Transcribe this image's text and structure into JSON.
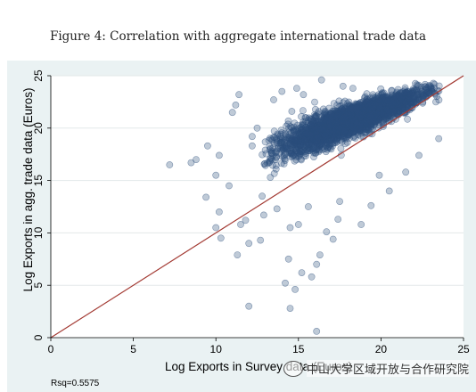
{
  "caption": "Figure 4: Correlation with aggregate international trade data",
  "chart_data": {
    "type": "scatter",
    "xlabel": "Log Exports in Survey data (Euros)",
    "ylabel": "Log Exports in agg. trade data (Euros)",
    "xlim": [
      0,
      25
    ],
    "ylim": [
      0,
      25
    ],
    "xticks": [
      0,
      5,
      10,
      15,
      20,
      25
    ],
    "yticks": [
      0,
      5,
      10,
      15,
      20,
      25
    ],
    "grid": true,
    "annotation": "Rsq=0.5575",
    "fit_line": {
      "x": [
        0,
        25
      ],
      "y": [
        0,
        25
      ],
      "color": "#a33a33"
    },
    "point_color": "#2c4f7c",
    "outlier_points": [
      [
        7.2,
        16.5
      ],
      [
        8.5,
        16.7
      ],
      [
        8.8,
        17.0
      ],
      [
        9.5,
        18.3
      ],
      [
        10.2,
        17.4
      ],
      [
        10.2,
        12.0
      ],
      [
        10.0,
        10.5
      ],
      [
        10.3,
        9.5
      ],
      [
        10.8,
        14.5
      ],
      [
        11.2,
        22.2
      ],
      [
        11.4,
        23.2
      ],
      [
        11.8,
        11.2
      ],
      [
        11.3,
        7.9
      ],
      [
        11.5,
        10.8
      ],
      [
        12.2,
        18.3
      ],
      [
        12.8,
        13.5
      ],
      [
        12.2,
        19.2
      ],
      [
        12.5,
        20.0
      ],
      [
        14.2,
        5.2
      ],
      [
        14.8,
        4.6
      ],
      [
        14.4,
        7.5
      ],
      [
        14.5,
        10.5
      ],
      [
        14.6,
        21.6
      ],
      [
        15.0,
        10.8
      ],
      [
        15.2,
        6.2
      ],
      [
        14.5,
        2.8
      ],
      [
        15.8,
        5.8
      ],
      [
        16.1,
        7.0
      ],
      [
        16.1,
        0.6
      ],
      [
        16.3,
        7.9
      ],
      [
        16.7,
        10.1
      ],
      [
        17.1,
        9.4
      ],
      [
        17.4,
        11.3
      ],
      [
        15.3,
        23.2
      ],
      [
        14.9,
        23.8
      ],
      [
        16.4,
        24.6
      ],
      [
        17.7,
        24.0
      ],
      [
        18.3,
        23.8
      ],
      [
        18.8,
        10.8
      ],
      [
        19.4,
        12.6
      ],
      [
        19.9,
        15.5
      ],
      [
        13.3,
        15.3
      ],
      [
        13.7,
        12.3
      ],
      [
        13.9,
        18.6
      ],
      [
        12.9,
        11.7
      ],
      [
        13.6,
        17.0
      ],
      [
        12.0,
        9.0
      ],
      [
        12.7,
        9.3
      ],
      [
        9.4,
        13.4
      ],
      [
        12.0,
        3.0
      ],
      [
        13.5,
        22.7
      ],
      [
        14.0,
        23.5
      ],
      [
        10.0,
        15.5
      ],
      [
        20.5,
        14.0
      ],
      [
        21.5,
        15.8
      ],
      [
        22.3,
        17.4
      ],
      [
        23.5,
        19.0
      ],
      [
        11.0,
        21.5
      ],
      [
        15.6,
        12.5
      ],
      [
        17.5,
        13.0
      ]
    ]
  },
  "watermark": {
    "text": "中山大学区域开放与合作研究院",
    "icon": "wechat-logo-icon"
  }
}
